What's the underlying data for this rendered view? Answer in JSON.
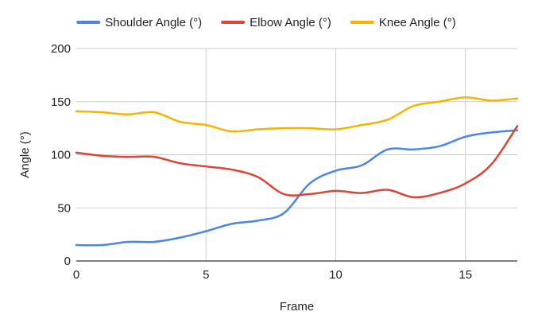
{
  "chart_data": {
    "type": "line",
    "xlabel": "Frame",
    "ylabel": "Angle (°)",
    "xlim": [
      0,
      17
    ],
    "ylim": [
      0,
      200
    ],
    "x_ticks": [
      0,
      5,
      10,
      15
    ],
    "y_ticks": [
      0,
      50,
      100,
      150,
      200
    ],
    "grid": true,
    "legend_position": "top",
    "x": [
      0,
      1,
      2,
      3,
      4,
      5,
      6,
      7,
      8,
      9,
      10,
      11,
      12,
      13,
      14,
      15,
      16,
      17
    ],
    "series": [
      {
        "name": "Shoulder Angle (°)",
        "color": "#4a86e8",
        "values": [
          15,
          15,
          18,
          18,
          22,
          28,
          35,
          38,
          45,
          73,
          85,
          90,
          105,
          105,
          108,
          117,
          121,
          123
        ]
      },
      {
        "name": "Elbow Angle (°)",
        "color": "#db4437",
        "values": [
          102,
          99,
          98,
          98,
          92,
          89,
          86,
          79,
          63,
          63,
          66,
          64,
          67,
          60,
          64,
          73,
          91,
          127
        ]
      },
      {
        "name": "Knee Angle (°)",
        "color": "#f4b400",
        "values": [
          141,
          140,
          138,
          140,
          131,
          128,
          122,
          124,
          125,
          125,
          124,
          128,
          133,
          146,
          150,
          154,
          151,
          153
        ]
      }
    ]
  }
}
